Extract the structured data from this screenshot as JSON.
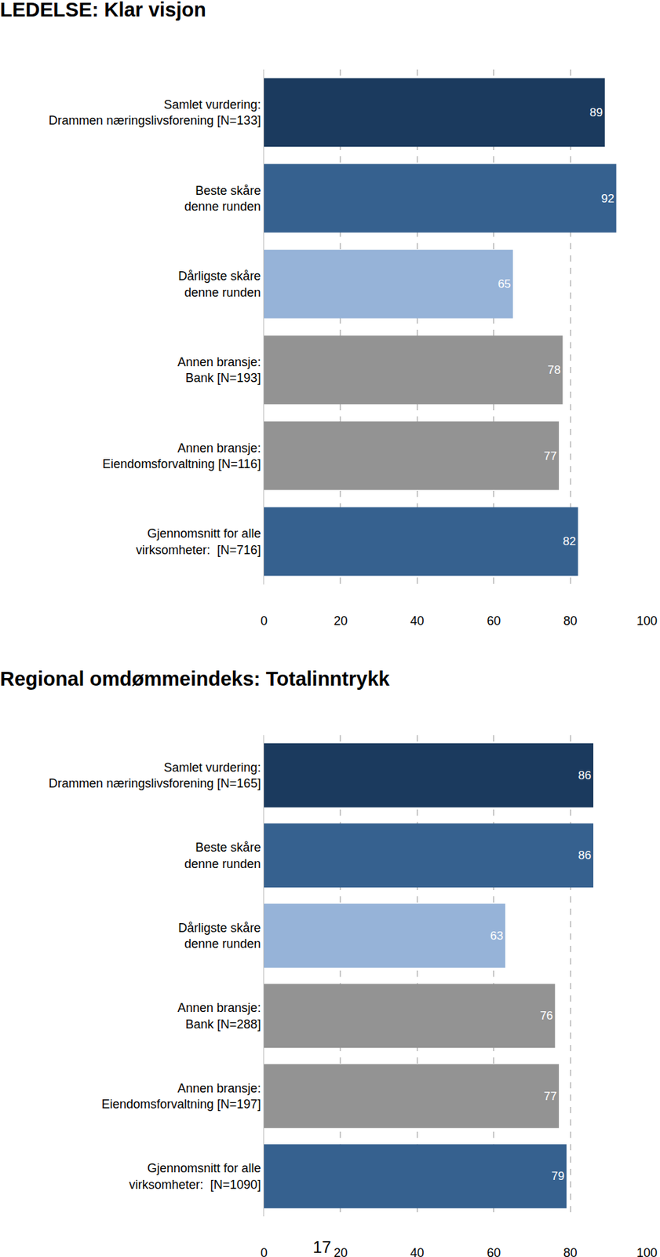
{
  "chart_data": [
    {
      "type": "bar",
      "orientation": "horizontal",
      "title": "LEDELSE: Klar visjon",
      "categories": [
        "Samlet vurdering:\nDrammen næringslivsforening [N=133]",
        "Beste skåre\ndenne runden",
        "Dårligste skåre\ndenne runden",
        "Annen bransje:\nBank [N=193]",
        "Annen bransje:\nEiendomsforvaltning [N=116]",
        "Gjennomsnitt for alle\nvirksomheter:  [N=716]"
      ],
      "values": [
        89,
        92,
        65,
        78,
        77,
        82
      ],
      "colors": [
        "#1b3a5e",
        "#36618f",
        "#96b3d8",
        "#939393",
        "#939393",
        "#36618f"
      ],
      "xlim": [
        0,
        100
      ],
      "xticks": [
        0,
        20,
        40,
        60,
        80,
        100
      ],
      "grid": true,
      "data_labels": true
    },
    {
      "type": "bar",
      "orientation": "horizontal",
      "title": "Regional omdømmeindeks: Totalinntrykk",
      "categories": [
        "Samlet vurdering:\nDrammen næringslivsforening [N=165]",
        "Beste skåre\ndenne runden",
        "Dårligste skåre\ndenne runden",
        "Annen bransje:\nBank [N=288]",
        "Annen bransje:\nEiendomsforvaltning [N=197]",
        "Gjennomsnitt for alle\nvirksomheter:  [N=1090]"
      ],
      "values": [
        86,
        86,
        63,
        76,
        77,
        79
      ],
      "colors": [
        "#1b3a5e",
        "#36618f",
        "#96b3d8",
        "#939393",
        "#939393",
        "#36618f"
      ],
      "xlim": [
        0,
        100
      ],
      "xticks": [
        0,
        20,
        40,
        60,
        80,
        100
      ],
      "grid": true,
      "data_labels": true
    }
  ],
  "page_number": 17
}
